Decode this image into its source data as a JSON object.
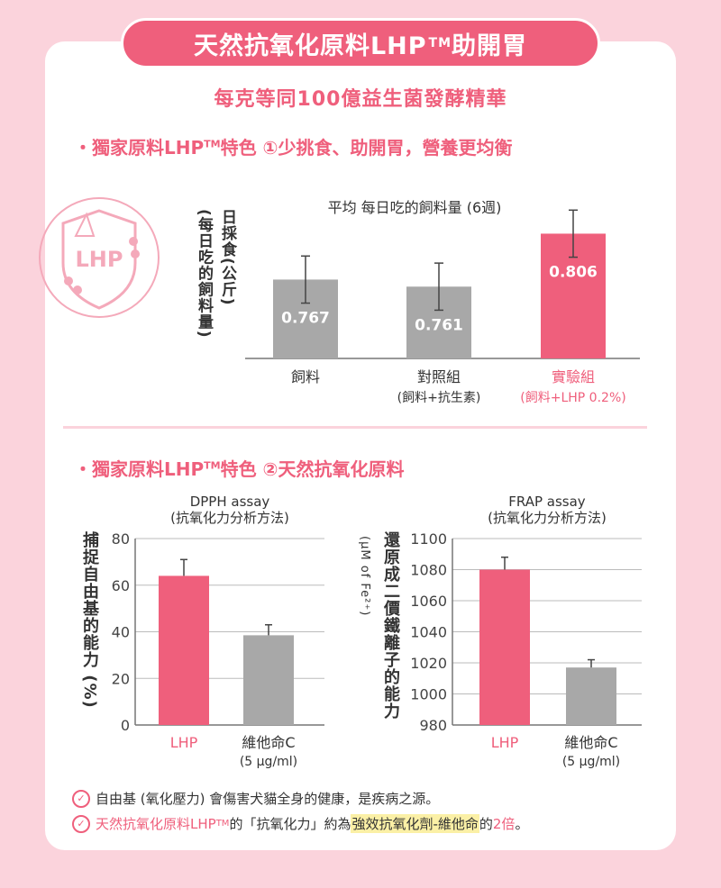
{
  "header": {
    "banner_text": "天然抗氧化原料LHP",
    "banner_tm": "TM",
    "banner_suffix": " 助開胃",
    "subtitle": "每克等同100億益生菌發酵精華"
  },
  "section1": {
    "bullet": "・",
    "title_a": "獨家原料LHP",
    "title_tm": "TM",
    "title_b": "特色 ①少挑食、助開胃，營養更均衡",
    "logo_text": "LHP",
    "ylabel_main": "日採食(公斤)",
    "ylabel_sub": "(每日吃的飼料量)"
  },
  "section2": {
    "bullet": "・",
    "title_a": "獨家原料LHP",
    "title_tm": "TM",
    "title_b": "特色 ②天然抗氧化原料"
  },
  "notes": {
    "n1": "自由基 (氧化壓力) 會傷害犬貓全身的健康，是疾病之源。",
    "n2_a": "天然抗氧化原料LHP",
    "n2_tm": "TM",
    "n2_b": " 的「抗氧化力」約為",
    "n2_hl": "強效抗氧化劑-維他命",
    "n2_c": "的",
    "n2_d": "2倍",
    "n2_e": "。"
  },
  "colors": {
    "accent": "#ef5f7c",
    "gray_bar": "#a8a8a8",
    "bg": "#fbd3dc"
  },
  "chart_data": [
    {
      "type": "bar",
      "title": "平均 每日吃的飼料量 (6週)",
      "ylabel": "日採食(公斤) (每日吃的飼料量)",
      "categories": [
        "飼料",
        "對照組",
        "實驗組"
      ],
      "category_sub": [
        "",
        "(飼料+抗生素)",
        "(飼料+LHP 0.2%)"
      ],
      "values": [
        0.767,
        0.761,
        0.806
      ],
      "value_labels": [
        "0.767",
        "0.761",
        "0.806"
      ],
      "ylim": [
        0.7,
        0.84
      ],
      "error": [
        0.02,
        0.02,
        0.02
      ],
      "bar_colors": [
        "#a8a8a8",
        "#a8a8a8",
        "#ef5f7c"
      ]
    },
    {
      "type": "bar",
      "title": "DPPH assay",
      "subtitle": "(抗氧化力分析方法)",
      "ylabel": "捕捉自由基的能力 (%)",
      "categories": [
        "LHP",
        "維他命C"
      ],
      "category_sub": [
        "",
        "(5 µg/ml)"
      ],
      "values": [
        64,
        38.5
      ],
      "error": [
        7,
        4.5
      ],
      "ylim": [
        0,
        80
      ],
      "yticks": [
        0,
        20,
        40,
        60,
        80
      ],
      "bar_colors": [
        "#ef5f7c",
        "#a8a8a8"
      ]
    },
    {
      "type": "bar",
      "title": "FRAP assay",
      "subtitle": "(抗氧化力分析方法)",
      "ylabel": "還原成二價鐵離子的能力",
      "ylabel_unit": "(µM of Fe²⁺)",
      "categories": [
        "LHP",
        "維他命C"
      ],
      "category_sub": [
        "",
        "(5 µg/ml)"
      ],
      "values": [
        1080,
        1017
      ],
      "error": [
        8,
        5
      ],
      "ylim": [
        980,
        1100
      ],
      "yticks": [
        980,
        1000,
        1020,
        1040,
        1060,
        1080,
        1100
      ],
      "bar_colors": [
        "#ef5f7c",
        "#a8a8a8"
      ]
    }
  ]
}
